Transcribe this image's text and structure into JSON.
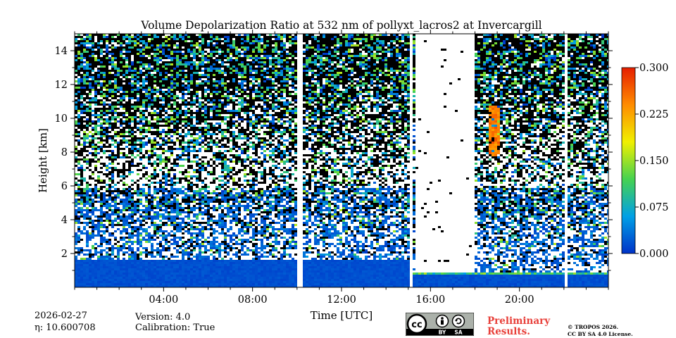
{
  "chart_data": {
    "type": "heatmap",
    "title": "Volume Depolarization Ratio at 532 nm of pollyxt_lacros2 at Invercargill",
    "xlabel": "Time [UTC]",
    "ylabel": "Height [km]",
    "xlim_hours": [
      0,
      24
    ],
    "ylim_km": [
      0,
      15
    ],
    "x_ticks": [
      {
        "hour": 4,
        "label": "04:00"
      },
      {
        "hour": 8,
        "label": "08:00"
      },
      {
        "hour": 12,
        "label": "12:00"
      },
      {
        "hour": 16,
        "label": "16:00"
      },
      {
        "hour": 20,
        "label": "20:00"
      }
    ],
    "y_ticks": [
      {
        "value": 2,
        "label": "2"
      },
      {
        "value": 4,
        "label": "4"
      },
      {
        "value": 6,
        "label": "6"
      },
      {
        "value": 8,
        "label": "8"
      },
      {
        "value": 10,
        "label": "10"
      },
      {
        "value": 12,
        "label": "12"
      },
      {
        "value": 14,
        "label": "14"
      }
    ],
    "colorbar": {
      "range": [
        0.0,
        0.3
      ],
      "ticks": [
        "0.000",
        "0.075",
        "0.150",
        "0.225",
        "0.300"
      ],
      "colors": [
        "#0032c8",
        "#00a0e6",
        "#46d250",
        "#f0f000",
        "#ff8c00",
        "#e61e00"
      ]
    },
    "data_gaps_hours": [
      [
        10.0,
        10.15
      ],
      [
        15.0,
        15.15
      ],
      [
        22.0,
        22.1
      ]
    ],
    "features": {
      "boundary_layer_top_km": {
        "before_15h": 1.7,
        "after_15h": 1.0
      },
      "cirrus_layer": {
        "time_hours": [
          18.5,
          19.0
        ],
        "height_km": [
          7.8,
          10.8
        ],
        "depol_ratio": 0.25
      },
      "blank_region_hours": [
        15.2,
        17.9
      ]
    }
  },
  "info": {
    "date": "2026-02-27",
    "eta": "η: 10.600708",
    "version": "Version: 4.0",
    "calibration": "Calibration: True",
    "preliminary_line1": "Preliminary",
    "preliminary_line2": "Results.",
    "copyright_line1": "© TROPOS 2026.",
    "copyright_line2": "CC BY SA 4.0 License.",
    "license_labels": {
      "by": "BY",
      "sa": "SA"
    }
  }
}
